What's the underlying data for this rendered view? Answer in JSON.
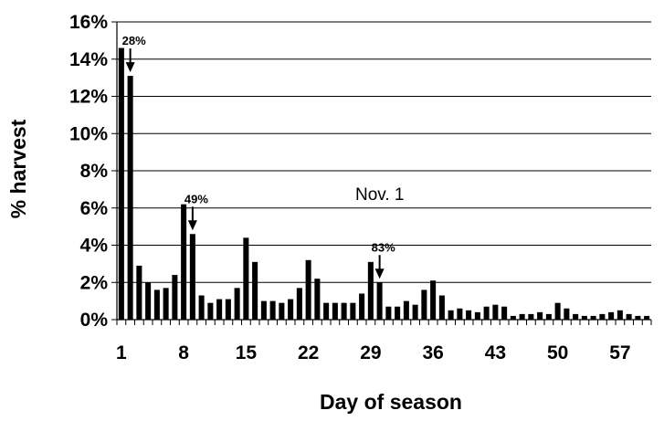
{
  "chart_data": {
    "type": "bar",
    "title": "",
    "xlabel": "Day of season",
    "ylabel": "% harvest",
    "ylim": [
      0,
      16
    ],
    "y_ticks": [
      "0%",
      "2%",
      "4%",
      "6%",
      "8%",
      "10%",
      "12%",
      "14%",
      "16%"
    ],
    "x_ticks": [
      "1",
      "8",
      "15",
      "22",
      "29",
      "36",
      "43",
      "50",
      "57"
    ],
    "grid": true,
    "legend": "none",
    "bar_color": "#000000",
    "x": [
      1,
      2,
      3,
      4,
      5,
      6,
      7,
      8,
      9,
      10,
      11,
      12,
      13,
      14,
      15,
      16,
      17,
      18,
      19,
      20,
      21,
      22,
      23,
      24,
      25,
      26,
      27,
      28,
      29,
      30,
      31,
      32,
      33,
      34,
      35,
      36,
      37,
      38,
      39,
      40,
      41,
      42,
      43,
      44,
      45,
      46,
      47,
      48,
      49,
      50,
      51,
      52,
      53,
      54,
      55,
      56,
      57,
      58,
      59,
      60
    ],
    "values": [
      14.6,
      13.1,
      2.9,
      2.0,
      1.6,
      1.7,
      2.4,
      6.2,
      4.6,
      1.3,
      0.9,
      1.1,
      1.1,
      1.7,
      4.4,
      3.1,
      1.0,
      1.0,
      0.9,
      1.1,
      1.7,
      3.2,
      2.2,
      0.9,
      0.9,
      0.9,
      0.9,
      1.4,
      3.1,
      2.0,
      0.7,
      0.7,
      1.0,
      0.8,
      1.6,
      2.1,
      1.3,
      0.5,
      0.6,
      0.5,
      0.4,
      0.7,
      0.8,
      0.7,
      0.2,
      0.3,
      0.3,
      0.4,
      0.3,
      0.9,
      0.6,
      0.3,
      0.2,
      0.2,
      0.3,
      0.4,
      0.5,
      0.3,
      0.2,
      0.2
    ],
    "annotations": [
      {
        "text": "28%",
        "day": 2
      },
      {
        "text": "49%",
        "day": 9
      },
      {
        "text": "83%",
        "day": 30
      }
    ],
    "note": "Nov. 1"
  }
}
